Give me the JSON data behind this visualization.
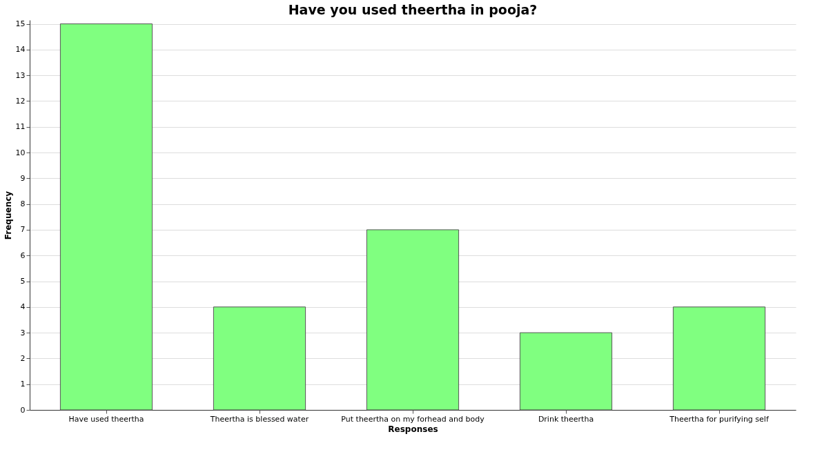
{
  "chart_data": {
    "type": "bar",
    "title": "Have you used theertha in pooja?",
    "xlabel": "Responses",
    "ylabel": "Frequency",
    "categories": [
      "Have used theertha",
      "Theertha is blessed water",
      "Put theertha on my forhead and body",
      "Drink theertha",
      "Theertha for purifying self"
    ],
    "values": [
      15,
      4,
      7,
      3,
      4
    ],
    "color": "#80ff80",
    "ylim": [
      0,
      15.15
    ],
    "yticks": [
      0,
      1,
      2,
      3,
      4,
      5,
      6,
      7,
      8,
      9,
      10,
      11,
      12,
      13,
      14,
      15
    ],
    "grid": "y"
  }
}
